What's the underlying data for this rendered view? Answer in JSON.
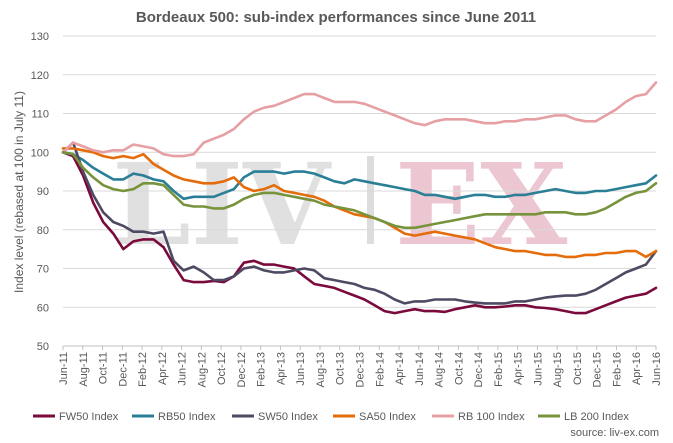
{
  "chart_data": {
    "type": "line",
    "title": "Bordeaux 500: sub-index performances since June 2011",
    "ylabel": "Index level (rebased at 100 in July 11)",
    "xlabel": "",
    "ylim": [
      50,
      130
    ],
    "y_ticks": [
      50,
      60,
      70,
      80,
      90,
      100,
      110,
      120,
      130
    ],
    "grid": true,
    "legend_position": "bottom",
    "x_tick_labels": [
      "Jun-11",
      "Aug-11",
      "Oct-11",
      "Dec-11",
      "Feb-12",
      "Apr-12",
      "Jun-12",
      "Aug-12",
      "Oct-12",
      "Dec-12",
      "Feb-13",
      "Apr-13",
      "Jun-13",
      "Aug-13",
      "Oct-13",
      "Dec-13",
      "Feb-14",
      "Apr-14",
      "Jun-14",
      "Aug-14",
      "Oct-14",
      "Dec-14",
      "Feb-15",
      "Apr-15",
      "Jun-15",
      "Aug-15",
      "Oct-15",
      "Dec-15",
      "Feb-16",
      "Apr-16",
      "Jun-16"
    ],
    "source": "source: liv-ex.com",
    "watermark": "LIV-EX",
    "series": [
      {
        "name": "FW50 Index",
        "color": "#7b0a3c",
        "values": [
          100,
          99,
          94,
          87,
          82,
          79,
          75,
          77,
          77.5,
          77.5,
          75.5,
          71,
          67,
          66.5,
          66.5,
          66.8,
          66.5,
          68,
          71.5,
          72,
          71,
          71,
          70.5,
          70,
          68,
          66,
          65.5,
          65,
          64,
          63,
          62,
          60.5,
          59,
          58.5,
          59,
          59.5,
          59,
          59,
          58.8,
          59.5,
          60,
          60.5,
          60,
          60,
          60.2,
          60.5,
          60.5,
          60,
          59.8,
          59.5,
          59,
          58.5,
          58.5,
          59.5,
          60.5,
          61.5,
          62.5,
          63,
          63.5,
          65
        ]
      },
      {
        "name": "RB50 Index",
        "color": "#2a7f96",
        "values": [
          100,
          99.5,
          98,
          96,
          94.5,
          93,
          93,
          94.5,
          94,
          93,
          92.5,
          90,
          88,
          88.5,
          88.5,
          88.5,
          89.5,
          90.5,
          93.5,
          95,
          95,
          95,
          94.5,
          95,
          95,
          94.5,
          93.5,
          92.5,
          92,
          93,
          92.5,
          92,
          91.5,
          91,
          90.5,
          90,
          89,
          89,
          88.5,
          88,
          88.5,
          89,
          89,
          88.5,
          88.5,
          89,
          89,
          89.5,
          90,
          90.5,
          90,
          89.5,
          89.5,
          90,
          90,
          90.5,
          91,
          91.5,
          92,
          94
        ]
      },
      {
        "name": "SW50 Index",
        "color": "#4e4a63",
        "values": [
          100,
          102.5,
          95,
          89,
          84.5,
          82,
          81,
          79.5,
          79.5,
          79,
          79.5,
          72,
          69.5,
          70.5,
          69,
          67,
          67,
          68,
          70,
          70.5,
          69.5,
          69,
          69,
          69.5,
          70,
          69.5,
          67.5,
          67,
          66.5,
          66,
          65,
          64.5,
          63.5,
          62,
          61,
          61.5,
          61.5,
          62,
          62,
          62,
          61.5,
          61.2,
          61,
          61,
          61,
          61.5,
          61.5,
          62,
          62.5,
          62.8,
          63,
          63,
          63.5,
          64.5,
          66,
          67.5,
          69,
          70,
          71,
          74.5
        ]
      },
      {
        "name": "SA50 Index",
        "color": "#e46c0a",
        "values": [
          101,
          101,
          100.5,
          100,
          99,
          98.5,
          99,
          98.5,
          99.5,
          97,
          95.5,
          94,
          93,
          92.5,
          92,
          92,
          92.5,
          93.5,
          91,
          90,
          90.5,
          91.5,
          90,
          89.5,
          89,
          88.5,
          87.5,
          86,
          85,
          84,
          83.5,
          83,
          82,
          80.5,
          79,
          78.5,
          79,
          79.5,
          79,
          78.5,
          78,
          77.5,
          76.5,
          75.5,
          75,
          74.5,
          74.5,
          74,
          73.5,
          73.5,
          73,
          73,
          73.5,
          73.5,
          74,
          74,
          74.5,
          74.5,
          73,
          74.5
        ]
      },
      {
        "name": "RB 100 Index",
        "color": "#e6a0a3",
        "values": [
          100,
          102.5,
          101.5,
          100.5,
          100,
          100.5,
          100.5,
          102,
          101.5,
          101,
          99.5,
          99,
          99,
          99.5,
          102.5,
          103.5,
          104.5,
          106,
          108.5,
          110.5,
          111.5,
          112,
          113,
          114,
          115,
          115,
          114,
          113,
          113,
          113,
          112.5,
          111.5,
          110.5,
          109.5,
          108.5,
          107.5,
          107,
          108,
          108.5,
          108.5,
          108.5,
          108,
          107.5,
          107.5,
          108,
          108,
          108.5,
          108.5,
          109,
          109.5,
          109.5,
          108.5,
          108,
          108,
          109.5,
          111,
          113,
          114.5,
          115,
          118
        ]
      },
      {
        "name": "LB 200 Index",
        "color": "#77933c",
        "values": [
          100,
          99.5,
          96,
          93.5,
          91.5,
          90.5,
          90,
          90.5,
          92,
          92,
          91.5,
          89,
          86.5,
          86,
          86,
          85.5,
          85.5,
          86.5,
          88,
          89,
          89.5,
          89.5,
          89,
          88.5,
          88,
          87.5,
          86.5,
          86,
          85.5,
          85,
          84,
          83,
          82,
          81,
          80.5,
          80.5,
          81,
          81.5,
          82,
          82.5,
          83,
          83.5,
          84,
          84,
          84,
          84,
          84,
          84,
          84.5,
          84.5,
          84.5,
          84,
          84,
          84.5,
          85.5,
          87,
          88.5,
          89.5,
          90,
          92
        ]
      }
    ]
  }
}
